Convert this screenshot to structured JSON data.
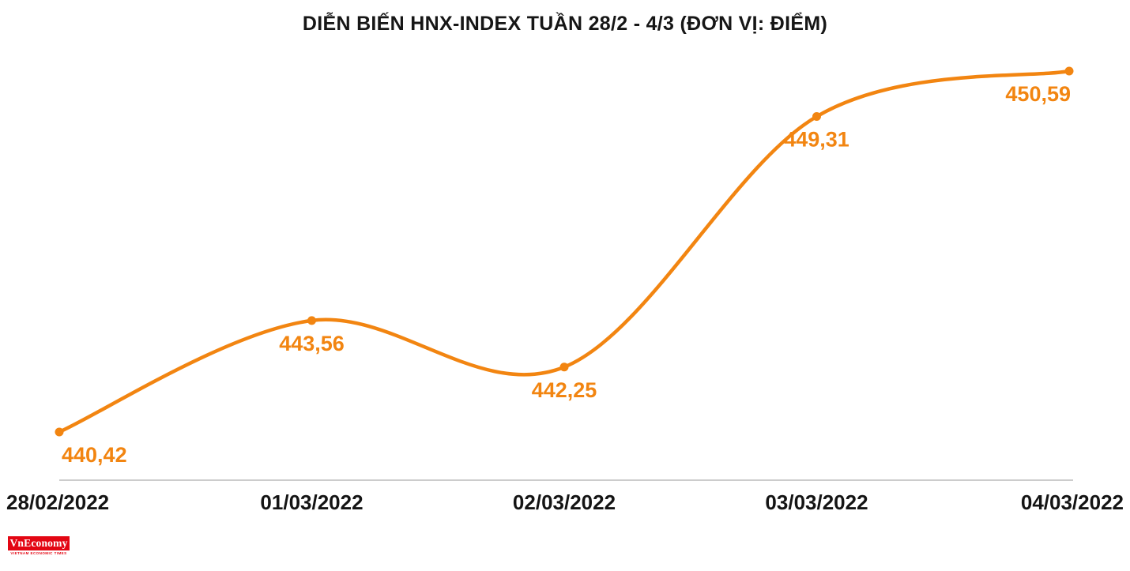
{
  "colors": {
    "accent": "#F28511",
    "title": "#161616",
    "tick": "#141414",
    "axis": "#CCCCCC",
    "logo_bg": "#E30613",
    "logo_text": "#FFFFFF"
  },
  "logo": {
    "text": "VnEconomy",
    "tagline": "VIETNAM ECONOMIC TIMES"
  },
  "chart_data": {
    "type": "line",
    "title": "DIỄN BIẾN HNX-INDEX TUẦN 28/2 - 4/3 (ĐƠN VỊ: ĐIỂM)",
    "series_name": "HNX-Index",
    "categories": [
      "28/02/2022",
      "01/03/2022",
      "02/03/2022",
      "03/03/2022",
      "04/03/2022"
    ],
    "values": [
      440.42,
      443.56,
      442.25,
      449.31,
      450.59
    ],
    "value_labels": [
      "440,42",
      "443,56",
      "442,25",
      "449,31",
      "450,59"
    ],
    "xlabel": "",
    "ylabel": "",
    "ylim": [
      440.42,
      450.59
    ],
    "grid": false,
    "legend": false,
    "line_smooth": true,
    "marker": "circle"
  }
}
